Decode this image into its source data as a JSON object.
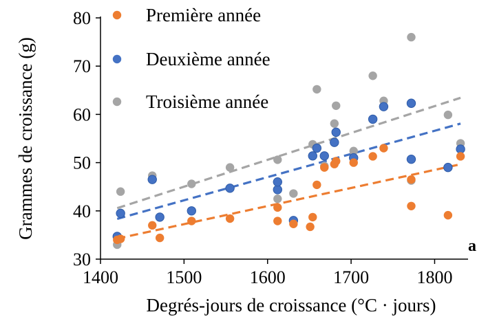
{
  "chart_data": {
    "type": "scatter",
    "title": "",
    "xlabel": "Degrés-jours de croissance (°C · jours)",
    "ylabel": "Grammes de croissance (g)",
    "xlim": [
      1400,
      1840
    ],
    "ylim": [
      30,
      80
    ],
    "xticks": [
      1400,
      1500,
      1600,
      1700,
      1800
    ],
    "yticks": [
      30,
      40,
      50,
      60,
      70,
      80
    ],
    "grid": false,
    "legend_position": "top-left",
    "panel_label": "a",
    "series": [
      {
        "name": "Première année",
        "color": "#ED7D31",
        "trendline": "linear",
        "points": [
          [
            1420,
            34.0
          ],
          [
            1424,
            34.2
          ],
          [
            1462,
            37.0
          ],
          [
            1471,
            34.4
          ],
          [
            1509,
            37.9
          ],
          [
            1555,
            38.4
          ],
          [
            1612,
            37.9
          ],
          [
            1612,
            40.7
          ],
          [
            1631,
            37.3
          ],
          [
            1651,
            36.7
          ],
          [
            1654,
            38.7
          ],
          [
            1659,
            45.4
          ],
          [
            1668,
            49.0
          ],
          [
            1680,
            49.7
          ],
          [
            1682,
            50.3
          ],
          [
            1703,
            50.0
          ],
          [
            1726,
            51.3
          ],
          [
            1739,
            53.0
          ],
          [
            1772,
            41.0
          ],
          [
            1772,
            46.5
          ],
          [
            1816,
            39.1
          ],
          [
            1831,
            51.3
          ]
        ]
      },
      {
        "name": "Deuxième année",
        "color": "#4472C4",
        "trendline": "linear",
        "points": [
          [
            1420,
            34.7
          ],
          [
            1424,
            39.5
          ],
          [
            1462,
            46.5
          ],
          [
            1471,
            38.7
          ],
          [
            1509,
            40.0
          ],
          [
            1555,
            44.7
          ],
          [
            1612,
            44.4
          ],
          [
            1612,
            46.0
          ],
          [
            1631,
            38.0
          ],
          [
            1654,
            51.4
          ],
          [
            1659,
            53.0
          ],
          [
            1668,
            51.4
          ],
          [
            1680,
            54.2
          ],
          [
            1682,
            56.3
          ],
          [
            1703,
            51.0
          ],
          [
            1726,
            59.0
          ],
          [
            1739,
            61.6
          ],
          [
            1772,
            50.7
          ],
          [
            1772,
            62.3
          ],
          [
            1816,
            49.0
          ],
          [
            1831,
            52.8
          ]
        ]
      },
      {
        "name": "Troisième année",
        "color": "#A5A5A5",
        "trendline": "linear",
        "points": [
          [
            1420,
            33.0
          ],
          [
            1424,
            44.0
          ],
          [
            1462,
            47.3
          ],
          [
            1509,
            45.6
          ],
          [
            1555,
            49.0
          ],
          [
            1612,
            42.5
          ],
          [
            1612,
            50.6
          ],
          [
            1631,
            43.6
          ],
          [
            1654,
            53.8
          ],
          [
            1659,
            65.2
          ],
          [
            1668,
            49.3
          ],
          [
            1680,
            58.1
          ],
          [
            1682,
            61.8
          ],
          [
            1703,
            52.4
          ],
          [
            1726,
            68.0
          ],
          [
            1739,
            62.8
          ],
          [
            1772,
            76.0
          ],
          [
            1772,
            46.3
          ],
          [
            1816,
            59.9
          ],
          [
            1831,
            54.0
          ]
        ]
      }
    ]
  }
}
